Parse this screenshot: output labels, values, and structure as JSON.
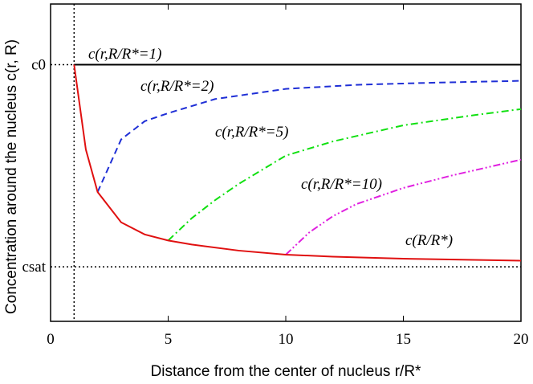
{
  "chart_data": {
    "type": "line",
    "xlabel": "Distance from the center of nucleus    r/R*",
    "ylabel": "Concentration around the nucleus    c(r, R)",
    "xlim": [
      0,
      20
    ],
    "xticks": [
      0,
      5,
      10,
      15,
      20
    ],
    "ylim": [
      -0.27,
      1.3
    ],
    "yticks": [
      {
        "value": 1,
        "label": "c0"
      },
      {
        "value": 0,
        "label": "csat"
      }
    ],
    "vline": 1,
    "series": [
      {
        "name": "c(r,R/R*=1)",
        "color": "#000000",
        "dash": "solid",
        "x": [
          1,
          20
        ],
        "values": [
          1,
          1
        ]
      },
      {
        "name": "c(r,R/R*=2)",
        "color": "#1f2fd6",
        "dash": "dashed",
        "x": [
          2,
          3,
          4,
          5,
          7,
          10,
          13,
          16,
          20
        ],
        "values": [
          0.37,
          0.63,
          0.72,
          0.76,
          0.83,
          0.88,
          0.9,
          0.91,
          0.92
        ]
      },
      {
        "name": "c(r,R/R*=5)",
        "color": "#10e010",
        "dash": "dashdot",
        "x": [
          5,
          6,
          7,
          8,
          10,
          12,
          15,
          18,
          20
        ],
        "values": [
          0.13,
          0.24,
          0.33,
          0.41,
          0.55,
          0.62,
          0.7,
          0.75,
          0.78
        ]
      },
      {
        "name": "c(r,R/R*=10)",
        "color": "#e020e0",
        "dash": "dashdotdot",
        "x": [
          10,
          11,
          12,
          13,
          15,
          17,
          20
        ],
        "values": [
          0.06,
          0.17,
          0.25,
          0.31,
          0.39,
          0.45,
          0.53
        ]
      },
      {
        "name": "c(R/R*)",
        "color": "#e01010",
        "dash": "solid",
        "x": [
          1,
          1.5,
          2,
          3,
          4,
          5,
          6,
          8,
          10,
          12,
          15,
          20
        ],
        "values": [
          1,
          0.58,
          0.37,
          0.22,
          0.16,
          0.13,
          0.11,
          0.08,
          0.06,
          0.05,
          0.04,
          0.03
        ]
      }
    ]
  }
}
